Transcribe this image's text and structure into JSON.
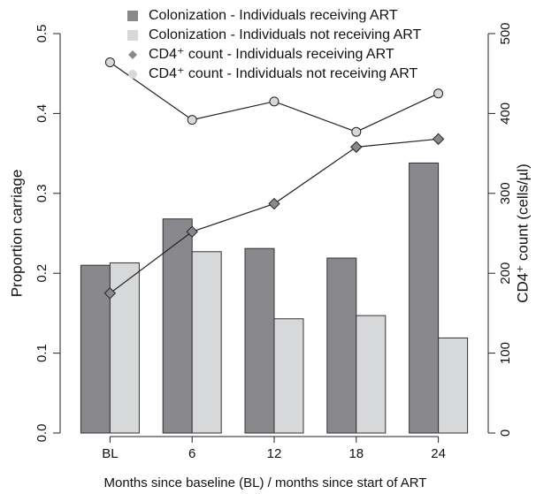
{
  "chart_data": {
    "type": "bar-line",
    "x_label": "Months since baseline (BL) / months since start of ART",
    "y_label": "Proportion carriage",
    "y2_label": "CD4⁺ count (cells/µl)",
    "categories": [
      "BL",
      "6",
      "12",
      "18",
      "24"
    ],
    "series": [
      {
        "name": "Colonization - Individuals receiving ART",
        "kind": "bar",
        "color": "#88888d",
        "values": [
          0.21,
          0.268,
          0.231,
          0.219,
          0.338
        ]
      },
      {
        "name": "Colonization - Individuals not receiving ART",
        "kind": "bar",
        "color": "#d7d8da",
        "values": [
          0.213,
          0.227,
          0.143,
          0.147,
          0.119
        ]
      },
      {
        "name": "CD4⁺ count - Individuals receiving ART",
        "kind": "line",
        "marker": "diamond",
        "color": "#88888d",
        "axis": "y2",
        "values": [
          175,
          252,
          287,
          358,
          368
        ]
      },
      {
        "name": "CD4⁺ count - Individuals not receiving ART",
        "kind": "line",
        "marker": "circle",
        "color": "#d7d8da",
        "axis": "y2",
        "values": [
          464,
          392,
          415,
          377,
          425
        ]
      }
    ],
    "ylim": [
      0,
      0.5
    ],
    "yticks": [
      {
        "value": 0,
        "label": "0.0"
      },
      0.1,
      0.2,
      0.3,
      0.4,
      0.5
    ],
    "y2lim": [
      0,
      500
    ],
    "y2ticks": [
      0,
      100,
      200,
      300,
      400,
      500
    ]
  }
}
